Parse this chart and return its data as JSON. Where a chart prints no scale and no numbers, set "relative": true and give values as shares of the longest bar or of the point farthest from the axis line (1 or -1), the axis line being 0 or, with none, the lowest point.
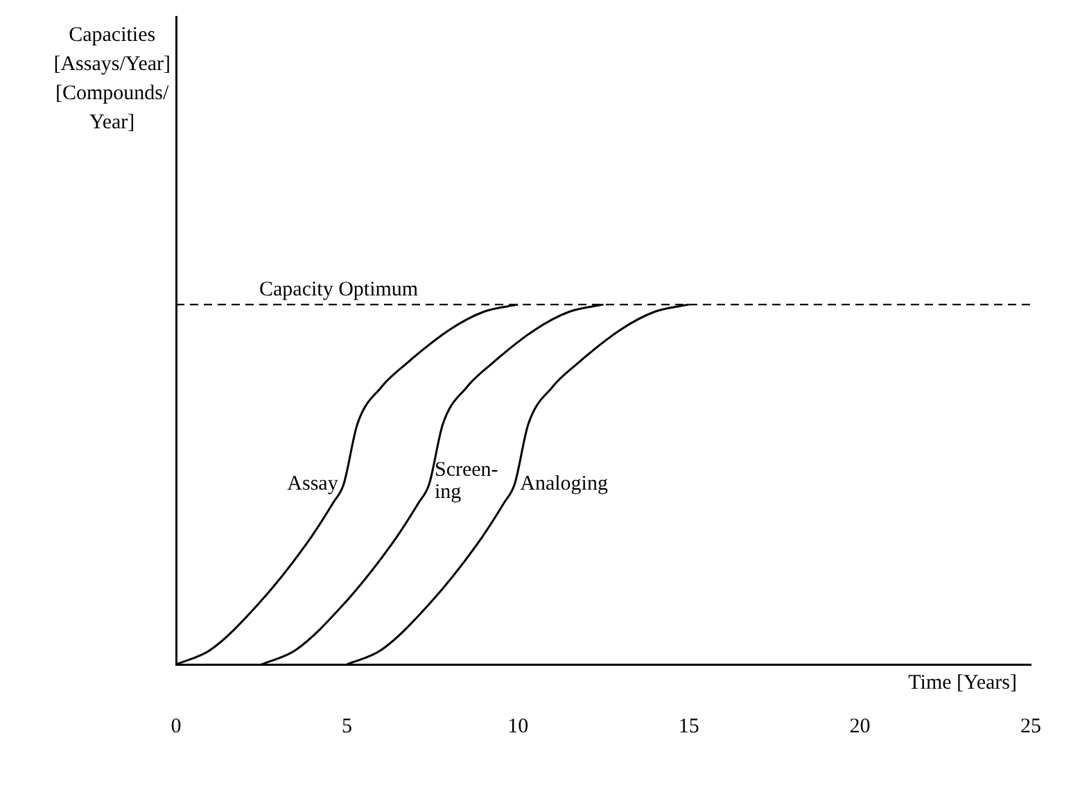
{
  "chart_data": {
    "type": "line",
    "relative": true,
    "xlabel": "Time [Years]",
    "annotations": [
      "Capacities\n[Assays/Year]\n[Compounds/\nYear]"
    ],
    "xlim": [
      0,
      25
    ],
    "xticks": [
      0,
      5,
      10,
      15,
      20,
      25
    ],
    "grid": false,
    "legend": false,
    "marker": "none",
    "line_style": "solid",
    "series": [
      {
        "name": "Assay",
        "color": "#000000",
        "x": [
          0,
          1,
          2.4,
          3.8,
          4.6,
          4.9,
          5.3,
          6,
          6.7,
          8,
          9,
          10
        ],
        "values": [
          0,
          0.04,
          0.167,
          0.333,
          0.45,
          0.5,
          0.667,
          0.77,
          0.833,
          0.93,
          0.98,
          1
        ]
      },
      {
        "name": "Screen-\ning",
        "color": "#000000",
        "x": [
          2.5,
          3.5,
          4.9,
          6.3,
          7.1,
          7.4,
          7.8,
          8.5,
          9.2,
          10.5,
          11.5,
          12.5
        ],
        "values": [
          0,
          0.04,
          0.167,
          0.333,
          0.45,
          0.5,
          0.667,
          0.77,
          0.833,
          0.93,
          0.98,
          1
        ]
      },
      {
        "name": "Analoging",
        "color": "#000000",
        "x": [
          5,
          6,
          7.4,
          8.8,
          9.6,
          9.9,
          10.3,
          11,
          11.7,
          13,
          14,
          15
        ],
        "values": [
          0,
          0.04,
          0.167,
          0.333,
          0.45,
          0.5,
          0.667,
          0.77,
          0.833,
          0.93,
          0.98,
          1
        ]
      }
    ],
    "ref_lines": [
      {
        "axis": "y",
        "value": 1,
        "label": "Capacity Optimum",
        "color": "#000000",
        "line_style": "dashed"
      }
    ]
  }
}
